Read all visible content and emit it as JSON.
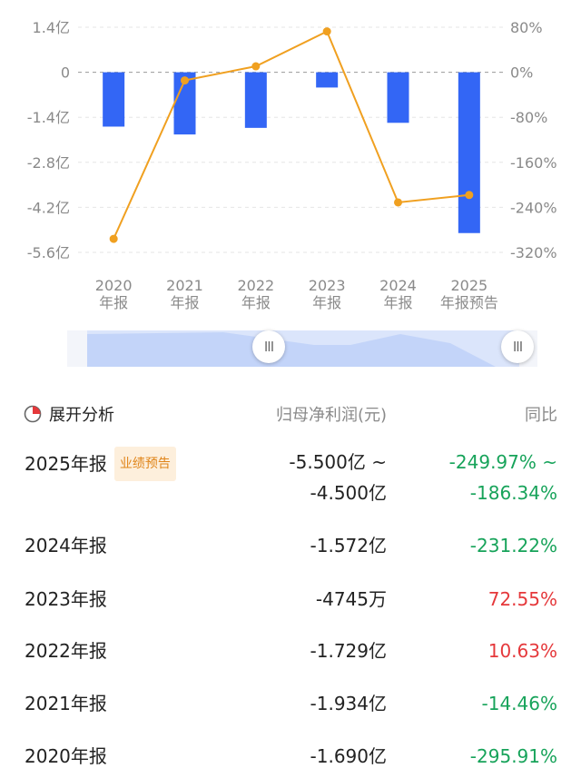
{
  "chart_data": {
    "type": "bar+line",
    "categories": [
      [
        "2020",
        "年报"
      ],
      [
        "2021",
        "年报"
      ],
      [
        "2022",
        "年报"
      ],
      [
        "2023",
        "年报"
      ],
      [
        "2024",
        "年报"
      ],
      [
        "2025",
        "年报预告"
      ]
    ],
    "left_axis": {
      "ticks": [
        "1.4亿",
        "0",
        "-1.4亿",
        "-2.8亿",
        "-4.2亿",
        "-5.6亿"
      ],
      "values": [
        1.4,
        0,
        -1.4,
        -2.8,
        -4.2,
        -5.6
      ],
      "unit": "亿"
    },
    "right_axis": {
      "ticks": [
        "80%",
        "0%",
        "-80%",
        "-160%",
        "-240%",
        "-320%"
      ],
      "values": [
        80,
        0,
        -80,
        -160,
        -240,
        -320
      ]
    },
    "bars": {
      "values": [
        -1.69,
        -1.934,
        -1.729,
        -0.4745,
        -1.572,
        -5.0
      ],
      "color": "#3366f5"
    },
    "line": {
      "values": [
        -295.91,
        -14.46,
        10.63,
        72.55,
        -231.22,
        -218.0
      ],
      "color": "#f0a020"
    },
    "grid": true
  },
  "slider": {
    "handle_glyph": "III"
  },
  "table": {
    "expand_label": "展开分析",
    "col_value": "归母净利润(元)",
    "col_yoy": "同比",
    "rows": [
      {
        "period": "2025年报",
        "badge": "业绩预告",
        "value1": "-5.500亿 ~",
        "value2": "-4.500亿",
        "yoy1": "-249.97% ~",
        "yoy2": "-186.34%",
        "dir": "neg"
      },
      {
        "period": "2024年报",
        "value": "-1.572亿",
        "yoy": "-231.22%",
        "dir": "neg"
      },
      {
        "period": "2023年报",
        "value": "-4745万",
        "yoy": "72.55%",
        "dir": "pos"
      },
      {
        "period": "2022年报",
        "value": "-1.729亿",
        "yoy": "10.63%",
        "dir": "pos"
      },
      {
        "period": "2021年报",
        "value": "-1.934亿",
        "yoy": "-14.46%",
        "dir": "neg"
      },
      {
        "period": "2020年报",
        "value": "-1.690亿",
        "yoy": "-295.91%",
        "dir": "neg"
      }
    ],
    "colors": {
      "down": "#17a35a",
      "up": "#e5383b",
      "badge": "#e0851a"
    }
  }
}
